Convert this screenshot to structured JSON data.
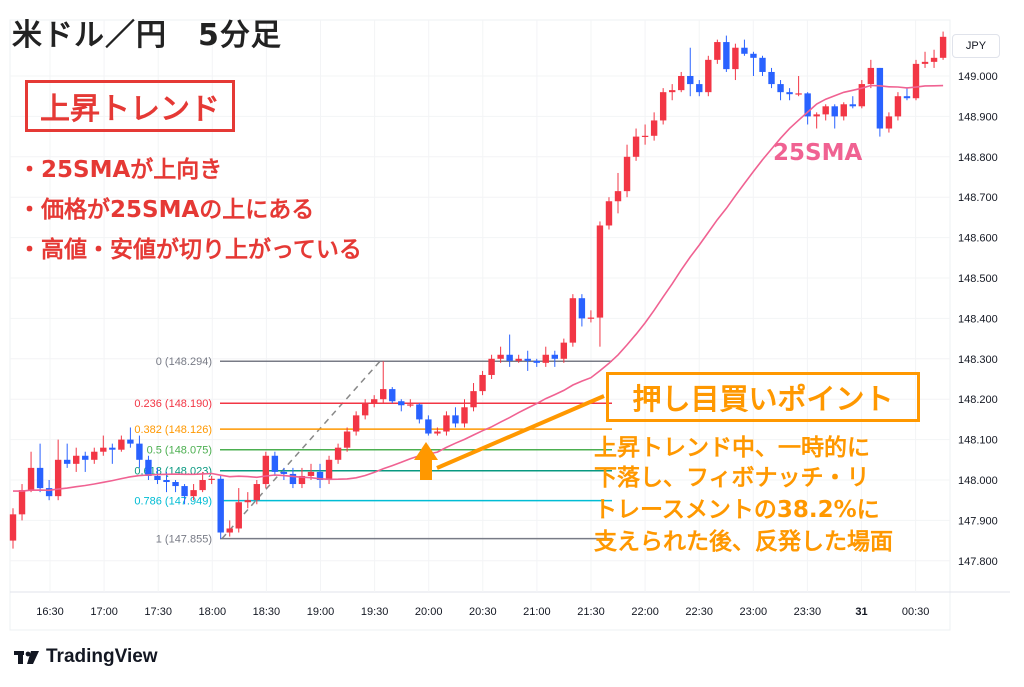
{
  "header": {
    "title": "米ドル／円　5分足"
  },
  "annotations": {
    "trend_box": "上昇トレンド",
    "bullets": [
      "・25SMAが上向き",
      "・価格が25SMAの上にある",
      "・高値・安値が切り上がっている"
    ],
    "sma_label": "25SMA",
    "dip_box": "押し目買いポイント",
    "note_lines": [
      "上昇トレンド中、一時的に",
      "下落し、フィボナッチ・リ",
      "トレースメントの38.2%に",
      "支えられた後、反発した場面"
    ]
  },
  "axis": {
    "currency": "JPY"
  },
  "brand": {
    "name": "TradingView"
  },
  "colors": {
    "up": "#f23645",
    "down": "#2962ff",
    "sma": "#f06292",
    "annotation_red": "#e53935",
    "annotation_orange": "#ff9800"
  },
  "chart_data": {
    "type": "candlestick",
    "interval": "5分",
    "first_candle_time": "16:10",
    "x_ticks": [
      "16:30",
      "17:00",
      "17:30",
      "18:00",
      "18:30",
      "19:00",
      "19:30",
      "20:00",
      "20:30",
      "21:00",
      "21:30",
      "22:00",
      "22:30",
      "23:00",
      "23:30",
      "31",
      "00:30"
    ],
    "y_ticks": [
      "149.000",
      "148.900",
      "148.800",
      "148.700",
      "148.600",
      "148.500",
      "148.400",
      "148.300",
      "148.200",
      "148.100",
      "148.000",
      "147.900",
      "147.800"
    ],
    "ylim": [
      147.7,
      149.15
    ],
    "grid": true,
    "ohlc": [
      [
        147.85,
        147.93,
        147.83,
        147.915
      ],
      [
        147.915,
        147.99,
        147.9,
        147.975
      ],
      [
        147.975,
        148.07,
        147.97,
        148.03
      ],
      [
        148.03,
        148.09,
        147.97,
        147.98
      ],
      [
        147.98,
        148.0,
        147.95,
        147.96
      ],
      [
        147.96,
        148.1,
        147.95,
        148.05
      ],
      [
        148.05,
        148.09,
        148.03,
        148.04
      ],
      [
        148.04,
        148.08,
        148.02,
        148.06
      ],
      [
        148.06,
        148.07,
        148.02,
        148.05
      ],
      [
        148.05,
        148.08,
        148.04,
        148.07
      ],
      [
        148.07,
        148.11,
        148.06,
        148.08
      ],
      [
        148.08,
        148.09,
        148.04,
        148.075
      ],
      [
        148.075,
        148.11,
        148.07,
        148.1
      ],
      [
        148.1,
        148.13,
        148.08,
        148.09
      ],
      [
        148.09,
        148.11,
        148.03,
        148.05
      ],
      [
        148.05,
        148.06,
        148.0,
        148.01
      ],
      [
        148.01,
        148.03,
        147.99,
        148.0
      ],
      [
        148.0,
        148.02,
        147.97,
        147.995
      ],
      [
        147.995,
        148.0,
        147.97,
        147.985
      ],
      [
        147.985,
        147.99,
        147.94,
        147.96
      ],
      [
        147.96,
        147.99,
        147.95,
        147.975
      ],
      [
        147.975,
        148.02,
        147.97,
        148.0
      ],
      [
        148.0,
        148.01,
        147.99,
        148.003
      ],
      [
        148.003,
        148.01,
        147.855,
        147.87
      ],
      [
        147.87,
        147.9,
        147.86,
        147.88
      ],
      [
        147.88,
        147.98,
        147.87,
        147.945
      ],
      [
        147.945,
        147.97,
        147.93,
        147.95
      ],
      [
        147.95,
        148.0,
        147.94,
        147.99
      ],
      [
        147.99,
        148.07,
        147.98,
        148.06
      ],
      [
        148.06,
        148.07,
        148.01,
        148.02
      ],
      [
        148.02,
        148.03,
        148.0,
        148.015
      ],
      [
        148.015,
        148.03,
        147.98,
        147.99
      ],
      [
        147.99,
        148.03,
        147.98,
        148.01
      ],
      [
        148.01,
        148.04,
        148.0,
        148.02
      ],
      [
        148.02,
        148.04,
        147.98,
        148.0
      ],
      [
        148.0,
        148.06,
        147.99,
        148.05
      ],
      [
        148.05,
        148.09,
        148.04,
        148.08
      ],
      [
        148.08,
        148.13,
        148.07,
        148.12
      ],
      [
        148.12,
        148.17,
        148.11,
        148.16
      ],
      [
        148.16,
        148.2,
        148.15,
        148.19
      ],
      [
        148.19,
        148.21,
        148.18,
        148.2
      ],
      [
        148.2,
        148.294,
        148.19,
        148.225
      ],
      [
        148.225,
        148.23,
        148.19,
        148.195
      ],
      [
        148.195,
        148.2,
        148.17,
        148.185
      ],
      [
        148.185,
        148.2,
        148.18,
        148.187
      ],
      [
        148.187,
        148.19,
        148.14,
        148.15
      ],
      [
        148.15,
        148.16,
        148.11,
        148.115
      ],
      [
        148.115,
        148.13,
        148.11,
        148.12
      ],
      [
        148.12,
        148.17,
        148.11,
        148.16
      ],
      [
        148.16,
        148.18,
        148.13,
        148.14
      ],
      [
        148.14,
        148.2,
        148.13,
        148.18
      ],
      [
        148.18,
        148.24,
        148.17,
        148.22
      ],
      [
        148.22,
        148.27,
        148.21,
        148.26
      ],
      [
        148.26,
        148.31,
        148.25,
        148.3
      ],
      [
        148.3,
        148.33,
        148.29,
        148.31
      ],
      [
        148.31,
        148.36,
        148.28,
        148.295
      ],
      [
        148.295,
        148.31,
        148.29,
        148.3
      ],
      [
        148.3,
        148.32,
        148.27,
        148.295
      ],
      [
        148.295,
        148.3,
        148.28,
        148.29
      ],
      [
        148.29,
        148.33,
        148.28,
        148.31
      ],
      [
        148.31,
        148.32,
        148.28,
        148.3
      ],
      [
        148.3,
        148.35,
        148.29,
        148.34
      ],
      [
        148.34,
        148.46,
        148.33,
        148.45
      ],
      [
        148.45,
        148.46,
        148.38,
        148.4
      ],
      [
        148.4,
        148.42,
        148.39,
        148.402
      ],
      [
        148.402,
        148.64,
        148.33,
        148.63
      ],
      [
        148.63,
        148.7,
        148.62,
        148.69
      ],
      [
        148.69,
        148.76,
        148.66,
        148.715
      ],
      [
        148.715,
        148.83,
        148.7,
        148.8
      ],
      [
        148.8,
        148.87,
        148.79,
        148.85
      ],
      [
        148.85,
        148.88,
        148.83,
        148.852
      ],
      [
        148.852,
        148.91,
        148.84,
        148.89
      ],
      [
        148.89,
        148.97,
        148.88,
        148.96
      ],
      [
        148.96,
        148.98,
        148.94,
        148.965
      ],
      [
        148.965,
        149.01,
        148.96,
        149.0
      ],
      [
        149.0,
        149.07,
        148.95,
        148.98
      ],
      [
        148.98,
        148.99,
        148.95,
        148.96
      ],
      [
        148.96,
        149.05,
        148.95,
        149.04
      ],
      [
        149.04,
        149.09,
        149.03,
        149.084
      ],
      [
        149.084,
        149.1,
        149.01,
        149.017
      ],
      [
        149.017,
        149.08,
        148.99,
        149.07
      ],
      [
        149.07,
        149.09,
        149.05,
        149.055
      ],
      [
        149.055,
        149.06,
        149.0,
        149.045
      ],
      [
        149.045,
        149.05,
        149.0,
        149.01
      ],
      [
        149.01,
        149.02,
        148.97,
        148.98
      ],
      [
        148.98,
        148.99,
        148.94,
        148.96
      ],
      [
        148.96,
        148.97,
        148.94,
        148.955
      ],
      [
        148.955,
        149.0,
        148.95,
        148.957
      ],
      [
        148.957,
        148.96,
        148.88,
        148.9
      ],
      [
        148.9,
        148.91,
        148.87,
        148.905
      ],
      [
        148.905,
        148.93,
        148.89,
        148.925
      ],
      [
        148.925,
        148.93,
        148.87,
        148.9
      ],
      [
        148.9,
        148.935,
        148.89,
        148.93
      ],
      [
        148.93,
        148.95,
        148.92,
        148.925
      ],
      [
        148.925,
        148.99,
        148.92,
        148.98
      ],
      [
        148.98,
        149.04,
        148.97,
        149.02
      ],
      [
        149.02,
        149.02,
        148.85,
        148.87
      ],
      [
        148.87,
        148.91,
        148.86,
        148.9
      ],
      [
        148.9,
        148.96,
        148.89,
        148.95
      ],
      [
        148.95,
        148.97,
        148.94,
        148.945
      ],
      [
        148.945,
        149.04,
        148.94,
        149.03
      ],
      [
        149.03,
        149.06,
        149.02,
        149.035
      ],
      [
        149.035,
        149.065,
        149.02,
        149.045
      ],
      [
        149.045,
        149.11,
        149.04,
        149.097
      ]
    ],
    "indicator": {
      "name": "25SMA",
      "period": 25
    },
    "fibonacci": {
      "from_price": 147.855,
      "to_price": 148.294,
      "levels": [
        {
          "ratio": "0",
          "price": "148.294",
          "label": "0 (148.294)",
          "color": "#787b86"
        },
        {
          "ratio": "0.236",
          "price": "148.190",
          "label": "0.236 (148.190)",
          "color": "#f23645"
        },
        {
          "ratio": "0.382",
          "price": "148.126",
          "label": "0.382 (148.126)",
          "color": "#ff9800"
        },
        {
          "ratio": "0.5",
          "price": "148.075",
          "label": "0.5 (148.075)",
          "color": "#4caf50"
        },
        {
          "ratio": "0.618",
          "price": "148.023",
          "label": "0.618 (148.023)",
          "color": "#089981"
        },
        {
          "ratio": "0.786",
          "price": "147.949",
          "label": "0.786 (147.949)",
          "color": "#00bcd4"
        },
        {
          "ratio": "1",
          "price": "147.855",
          "label": "1 (147.855)",
          "color": "#787b86"
        }
      ]
    }
  }
}
